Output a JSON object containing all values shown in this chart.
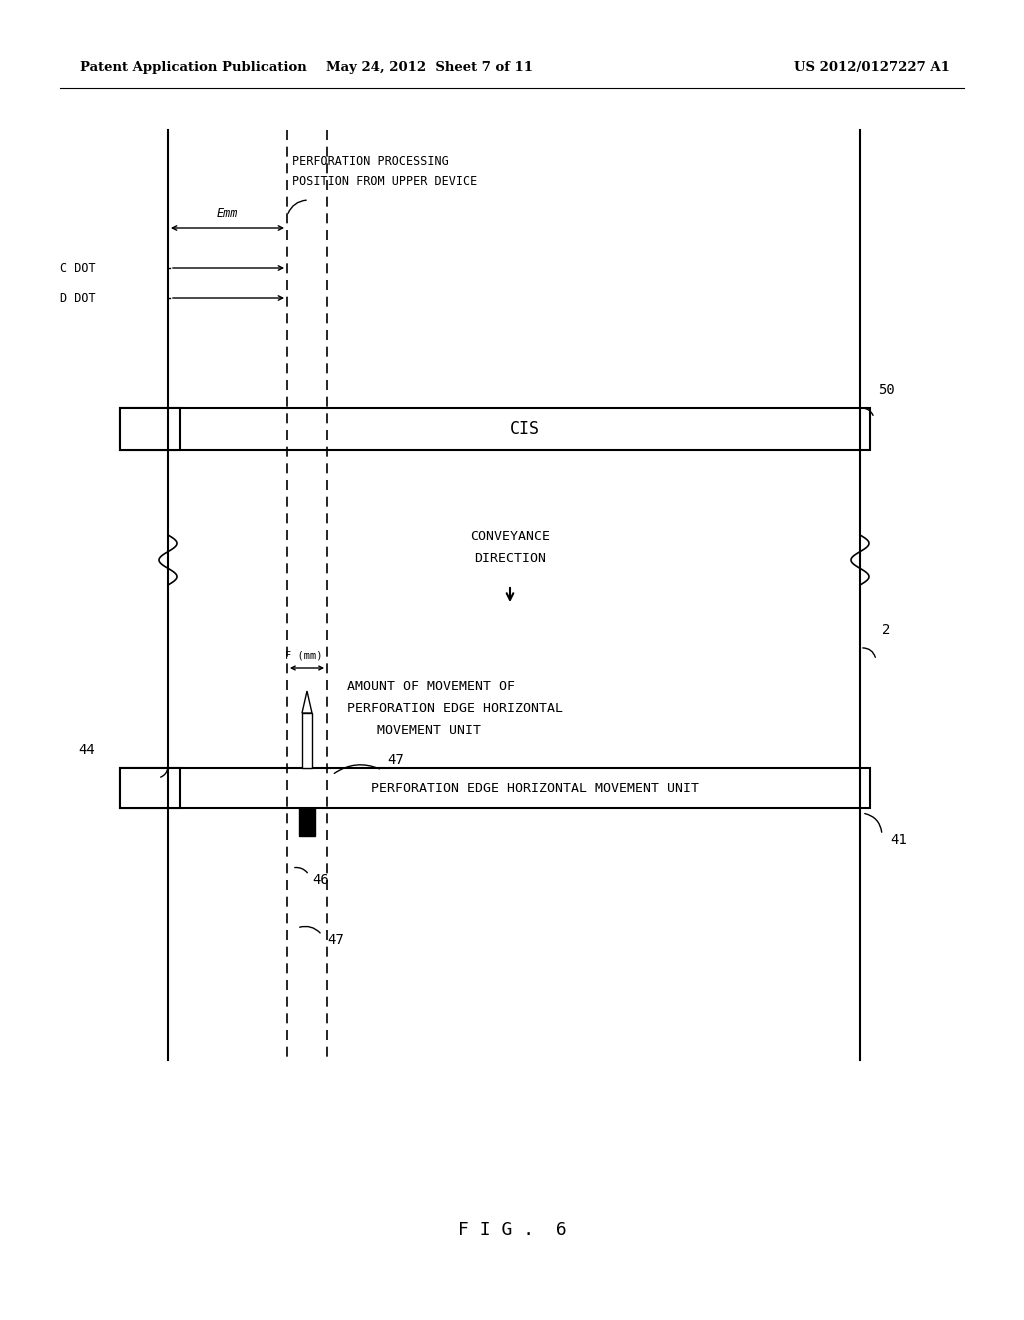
{
  "bg_color": "#ffffff",
  "header_left": "Patent Application Publication",
  "header_mid": "May 24, 2012  Sheet 7 of 11",
  "header_right": "US 2012/0127227 A1",
  "figure_label": "F I G .  6",
  "cis_label": "CIS",
  "perforation_box_label": "PERFORATION EDGE HORIZONTAL MOVEMENT UNIT",
  "label_50": "50",
  "label_2": "2",
  "label_44": "44",
  "label_47a": "47",
  "label_47b": "47",
  "label_46": "46",
  "label_41": "41",
  "perf_processing_line1": "PERFORATION PROCESSING",
  "perf_processing_line2": "POSITION FROM UPPER DEVICE",
  "emm_label": "Emm",
  "cdot_label": "C DOT",
  "ddot_label": "D DOT",
  "conveyance_label": "CONVEYANCE\nDIRECTION",
  "movement_label": "AMOUNT OF MOVEMENT OF\nPERFORATION EDGE HORIZONTAL\nMOVEMENT UNIT",
  "f_label": "F (mm)"
}
